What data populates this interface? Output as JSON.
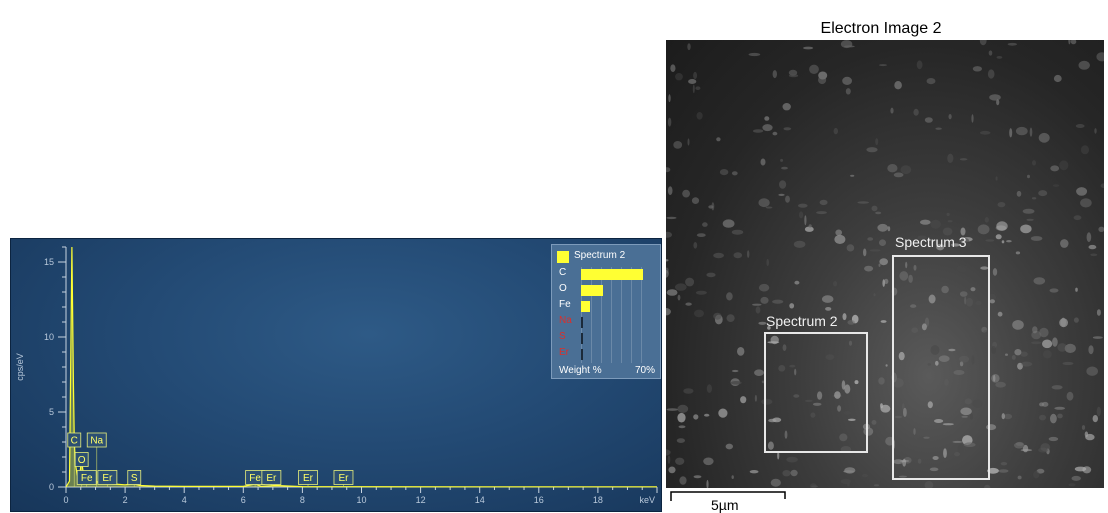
{
  "chart_data": [
    {
      "type": "line",
      "title": "",
      "xlabel": "keV",
      "ylabel": "cps/eV",
      "xlim": [
        0,
        20
      ],
      "ylim": [
        0,
        16
      ],
      "x_ticks": [
        "0",
        "2",
        "4",
        "6",
        "8",
        "10",
        "12",
        "14",
        "16",
        "18"
      ],
      "y_ticks": [
        "0",
        "5",
        "10",
        "15"
      ],
      "grid": false,
      "series": [
        {
          "name": "Spectrum 2",
          "color": "#ffff33",
          "x": [
            0.0,
            0.12,
            0.2,
            0.25,
            0.28,
            0.32,
            0.38,
            0.45,
            0.5,
            0.525,
            0.55,
            0.6,
            0.65,
            0.7,
            0.75,
            0.9,
            1.05,
            1.2,
            1.4,
            1.6,
            2.0,
            2.3,
            2.5,
            3.0,
            4.0,
            6.0,
            6.4,
            6.6,
            7.1,
            8.0,
            10.0,
            14.0,
            20.0
          ],
          "y": [
            0.0,
            0.4,
            16.0,
            7.0,
            3.0,
            1.5,
            0.8,
            0.5,
            1.4,
            1.9,
            1.4,
            0.7,
            0.5,
            0.5,
            0.45,
            0.4,
            0.35,
            0.3,
            0.25,
            0.2,
            0.15,
            0.2,
            0.1,
            0.06,
            0.04,
            0.04,
            0.2,
            0.05,
            0.1,
            0.03,
            0.02,
            0.01,
            0.01
          ]
        }
      ],
      "peak_labels": [
        {
          "label": "C",
          "x": 0.28,
          "y": 3.6
        },
        {
          "label": "Na",
          "x": 1.04,
          "y": 3.6
        },
        {
          "label": "O",
          "x": 0.53,
          "y": 2.3
        },
        {
          "label": "Fe",
          "x": 0.7,
          "y": 1.1
        },
        {
          "label": "Er",
          "x": 1.4,
          "y": 1.1
        },
        {
          "label": "S",
          "x": 2.31,
          "y": 1.1
        },
        {
          "label": "Fe",
          "x": 6.4,
          "y": 1.1
        },
        {
          "label": "Er",
          "x": 6.95,
          "y": 1.1
        },
        {
          "label": "Er",
          "x": 8.19,
          "y": 1.1
        },
        {
          "label": "Er",
          "x": 9.39,
          "y": 1.1
        }
      ],
      "legend": {
        "title": "Spectrum 2",
        "placement": "top-right",
        "xlabel": "Weight %",
        "xmax_label": "70%",
        "xmax": 70,
        "elements": [
          {
            "name": "C",
            "value": 62,
            "color": "#ffffff"
          },
          {
            "name": "O",
            "value": 22,
            "color": "#ffffff"
          },
          {
            "name": "Fe",
            "value": 9,
            "color": "#ffffff"
          },
          {
            "name": "Na",
            "value": 0.8,
            "color": "#d9302c"
          },
          {
            "name": "S",
            "value": 0.3,
            "color": "#d9302c"
          },
          {
            "name": "Er",
            "value": 0.4,
            "color": "#d9302c"
          }
        ]
      }
    }
  ],
  "electron_image": {
    "title": "Electron Image 2",
    "regions": [
      {
        "label": "Spectrum 2"
      },
      {
        "label": "Spectrum 3"
      }
    ],
    "scale_label": "5µm"
  }
}
